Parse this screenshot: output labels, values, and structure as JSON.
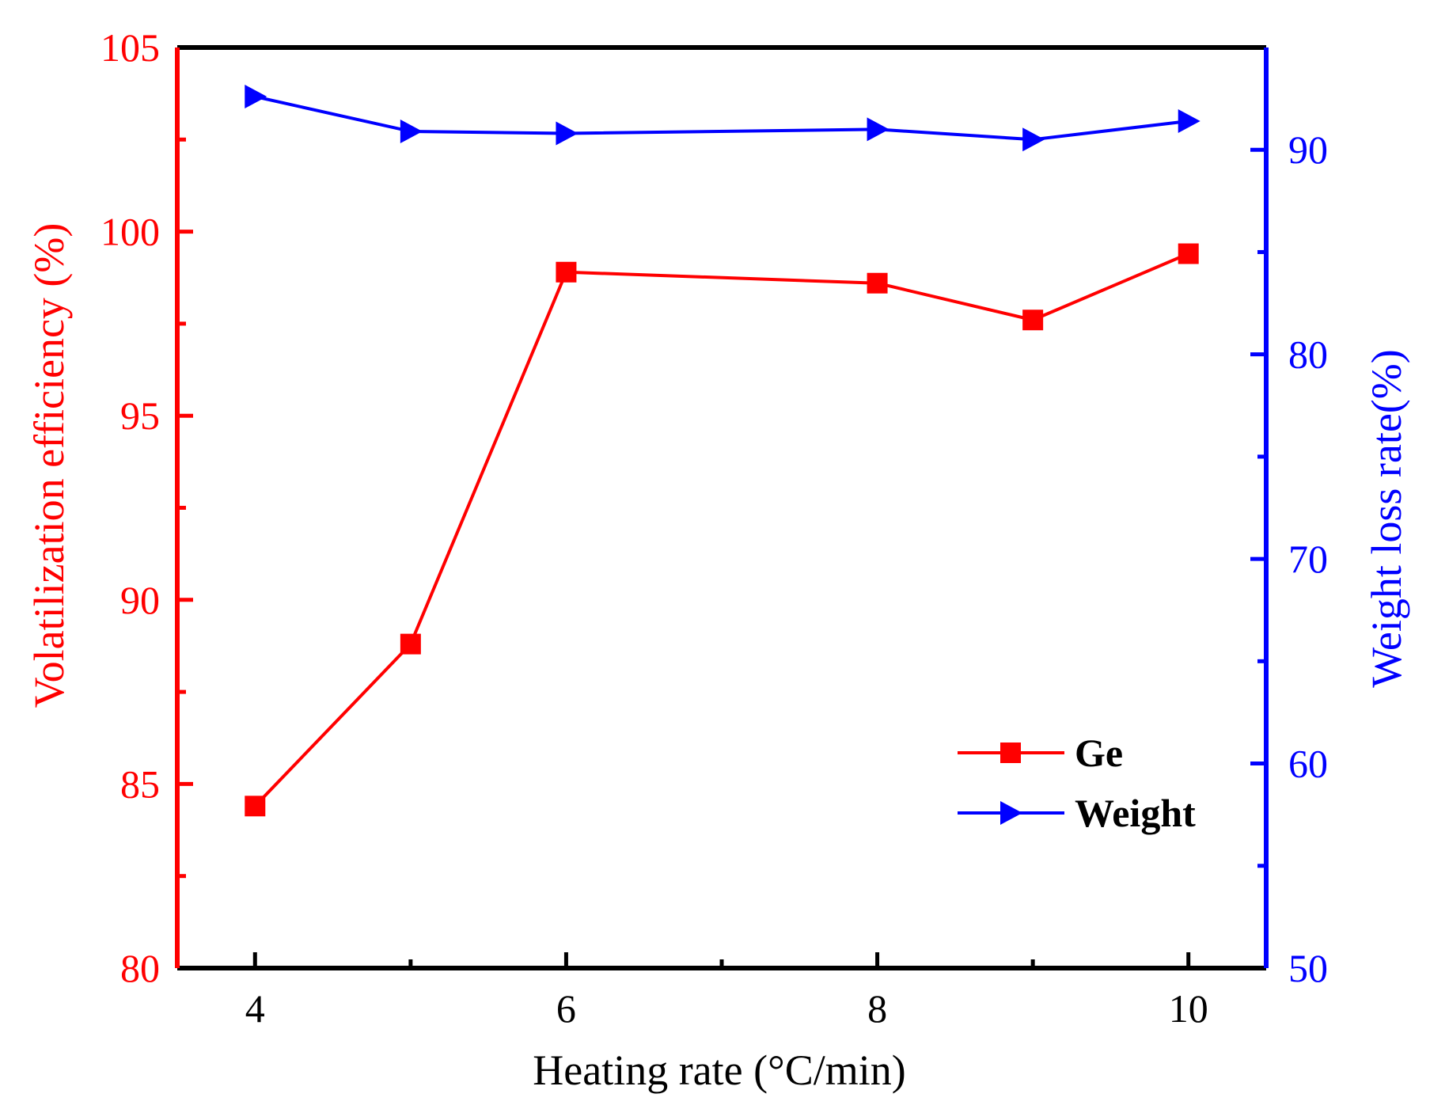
{
  "chart_data": {
    "type": "line",
    "title": "",
    "xlabel": "Heating rate (°C/min)",
    "ylabel": "Volatilization efficiency (%)",
    "y2label": "Weight loss rate(%)",
    "xlim": [
      3.5,
      10.5
    ],
    "ylim": [
      80,
      105
    ],
    "y2lim": [
      50,
      95
    ],
    "xticks": [
      4,
      6,
      8,
      10
    ],
    "xticklabels": [
      "4",
      "6",
      "8",
      "10"
    ],
    "xminorticks": [
      5,
      7,
      9
    ],
    "yticks": [
      80,
      85,
      90,
      95,
      100,
      105
    ],
    "yticklabels": [
      "80",
      "85",
      "90",
      "95",
      "100",
      "105"
    ],
    "yminorticks": [
      82.5,
      87.5,
      92.5,
      97.5,
      102.5
    ],
    "y2ticks": [
      50,
      60,
      70,
      80,
      90
    ],
    "y2ticklabels": [
      "50",
      "60",
      "70",
      "80",
      "90"
    ],
    "y2minorticks": [
      55,
      65,
      75,
      85
    ],
    "x": [
      4,
      5,
      6,
      8,
      9,
      10
    ],
    "series": [
      {
        "name": "Ge",
        "axis": "left",
        "color": "#ff0000",
        "marker": "square",
        "values": [
          84.4,
          88.8,
          98.9,
          98.6,
          97.6,
          99.4
        ]
      },
      {
        "name": "Weight",
        "axis": "right",
        "color": "#0000ff",
        "marker": "triangle-right",
        "values": [
          92.6,
          90.9,
          90.8,
          91.0,
          90.5,
          91.4
        ]
      }
    ],
    "legend": {
      "position": "lower-right",
      "labels": [
        "Ge",
        "Weight"
      ]
    },
    "colors": {
      "left_axis": "#ff0000",
      "right_axis": "#0000ff",
      "frame": "#000000"
    },
    "grid": false
  }
}
